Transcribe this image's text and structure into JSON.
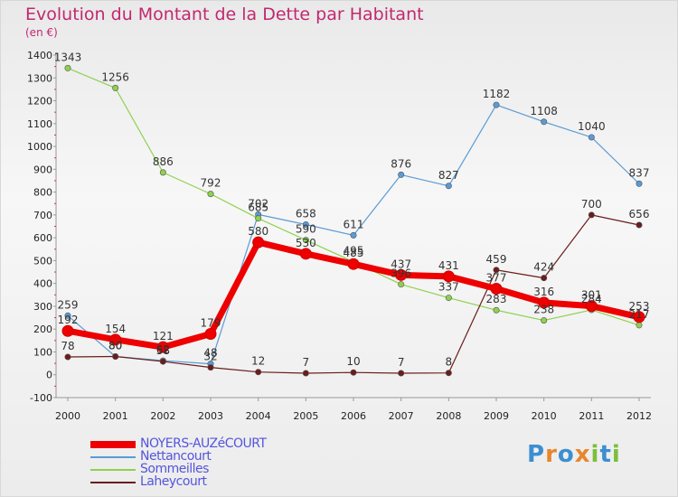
{
  "title": "Evolution du Montant de la Dette par Habitant",
  "subtitle": "(en €)",
  "logo": {
    "text": "Proxiti",
    "letters": [
      "P",
      "r",
      "o",
      "x",
      "i",
      "t",
      "i"
    ],
    "colors": [
      "#3b8fd0",
      "#e8862c",
      "#3b8fd0",
      "#e8862c",
      "#7cbf3a",
      "#3b8fd0",
      "#7cbf3a"
    ]
  },
  "chart_data": {
    "type": "line",
    "title": "Evolution du Montant de la Dette par Habitant",
    "ylabel": "(en €)",
    "x": [
      "2000",
      "2001",
      "2002",
      "2003",
      "2004",
      "2005",
      "2006",
      "2007",
      "2008",
      "2009",
      "2010",
      "2011",
      "2012"
    ],
    "ylim": [
      -100,
      1400
    ],
    "yticks": [
      -100,
      0,
      100,
      200,
      300,
      400,
      500,
      600,
      700,
      800,
      900,
      1000,
      1100,
      1200,
      1300,
      1400
    ],
    "grid": false,
    "legend_position": "bottom-left",
    "series": [
      {
        "name": "NOYERS-AUZéCOURT",
        "color": "#ee0000",
        "width": 7,
        "values": [
          192,
          154,
          121,
          179,
          580,
          530,
          485,
          437,
          431,
          377,
          316,
          301,
          253
        ]
      },
      {
        "name": "Nettancourt",
        "color": "#5b9bd5",
        "width": 1.2,
        "values": [
          259,
          80,
          62,
          48,
          702,
          658,
          611,
          876,
          827,
          1182,
          1108,
          1040,
          837
        ]
      },
      {
        "name": "Sommeilles",
        "color": "#8fd14f",
        "width": 1.2,
        "values": [
          1343,
          1256,
          886,
          792,
          685,
          590,
          495,
          396,
          337,
          283,
          238,
          284,
          217
        ]
      },
      {
        "name": "Laheycourt",
        "color": "#6b1c1c",
        "width": 1.2,
        "values": [
          78,
          80,
          58,
          32,
          12,
          7,
          10,
          7,
          8,
          459,
          424,
          700,
          656
        ]
      }
    ]
  }
}
